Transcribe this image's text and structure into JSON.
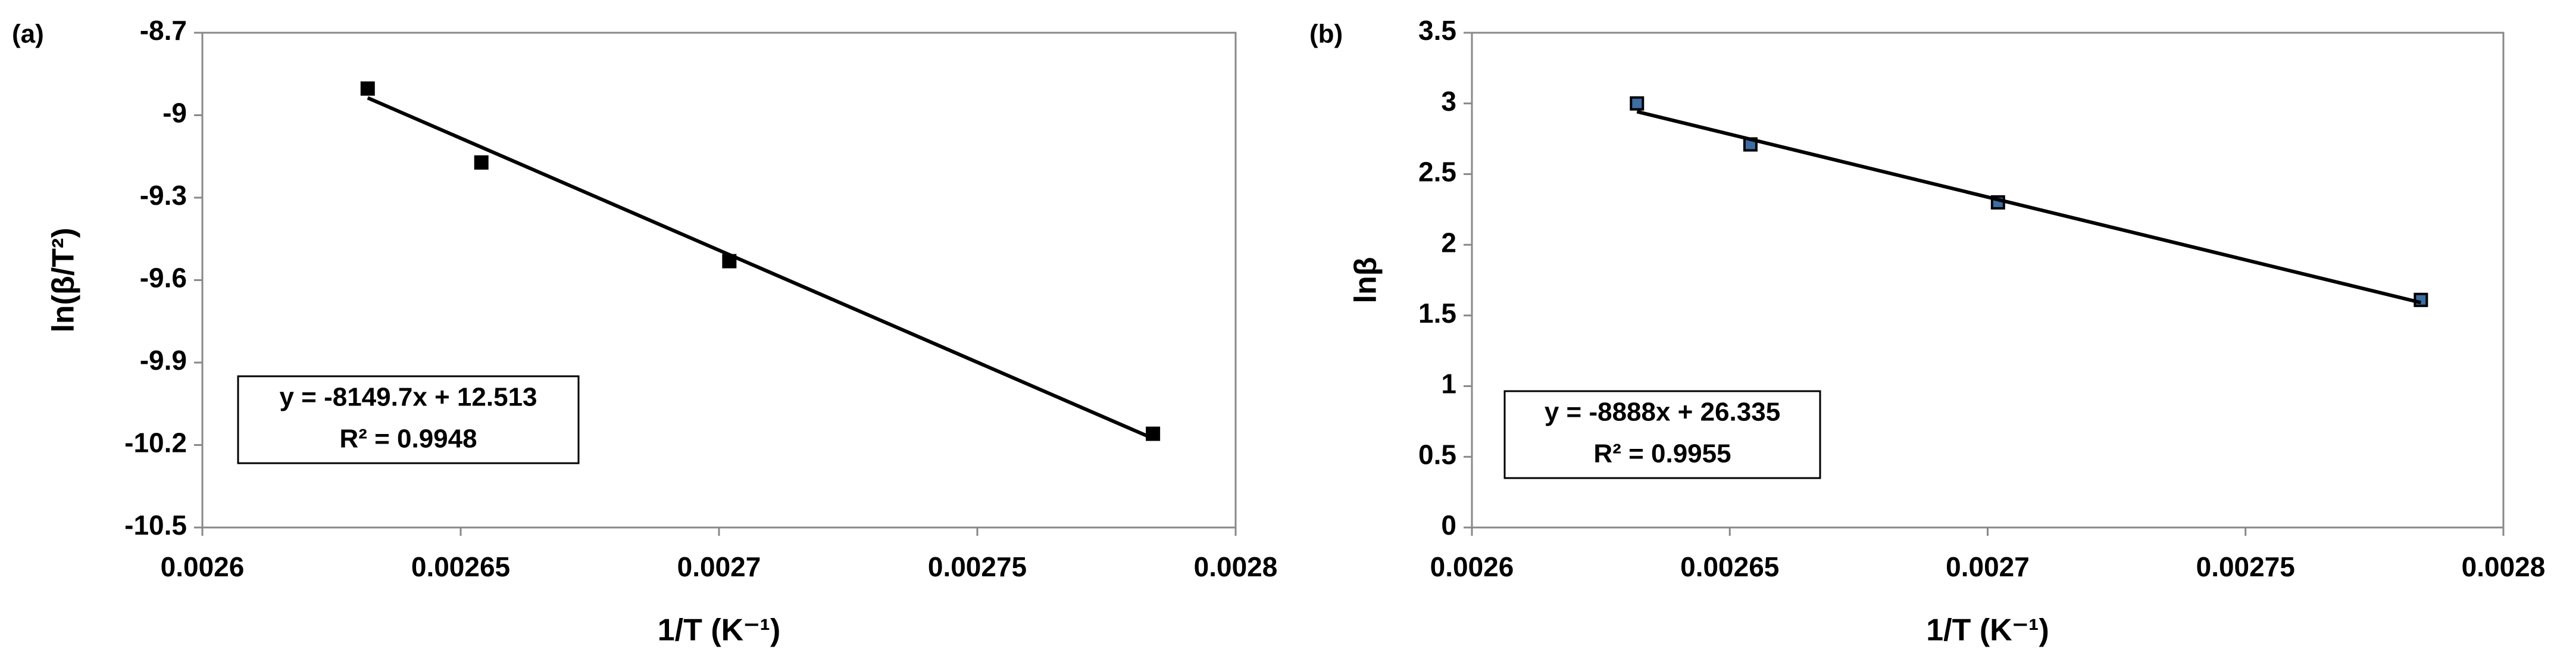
{
  "chart_data": [
    {
      "type": "scatter",
      "panel_label": "(a)",
      "x_label": "1/T (K⁻¹)",
      "y_label": "ln(β/T²)",
      "x": [
        0.002632,
        0.002654,
        0.002702,
        0.002784
      ],
      "series": [
        {
          "mode": "markers",
          "color": "#000000",
          "values": [
            -8.903,
            -9.172,
            -9.531,
            -10.159
          ]
        },
        {
          "mode": "line",
          "color": "#000000",
          "x": [
            0.002632,
            0.002784
          ],
          "values": [
            -8.937,
            -10.176
          ]
        }
      ],
      "annotation": [
        "y = -8149.7x + 12.513",
        "R² = 0.9948"
      ],
      "xlim": [
        0.0026,
        0.0028
      ],
      "xticks": [
        0.0026,
        0.00265,
        0.0027,
        0.00275,
        0.0028
      ],
      "ylim": [
        -10.5,
        -8.7
      ],
      "yticks": [
        -8.7,
        -9,
        -9.3,
        -9.6,
        -9.9,
        -10.2,
        -10.5
      ],
      "grid": false
    },
    {
      "type": "scatter",
      "panel_label": "(b)",
      "x_label": "1/T (K⁻¹)",
      "y_label": "lnβ",
      "x": [
        0.002632,
        0.002654,
        0.002702,
        0.002784
      ],
      "series": [
        {
          "mode": "markers",
          "color": "#3a6ea5",
          "values": [
            3.0,
            2.71,
            2.3,
            1.61
          ]
        },
        {
          "mode": "line",
          "color": "#000000",
          "x": [
            0.002632,
            0.002784
          ],
          "values": [
            2.942,
            1.591
          ]
        }
      ],
      "annotation": [
        "y = -8888x + 26.335",
        "R² = 0.9955"
      ],
      "xlim": [
        0.0026,
        0.0028
      ],
      "xticks": [
        0.0026,
        0.00265,
        0.0027,
        0.00275,
        0.0028
      ],
      "ylim": [
        0,
        3.5
      ],
      "yticks": [
        0,
        0.5,
        1,
        1.5,
        2,
        2.5,
        3,
        3.5
      ],
      "grid": false
    }
  ]
}
